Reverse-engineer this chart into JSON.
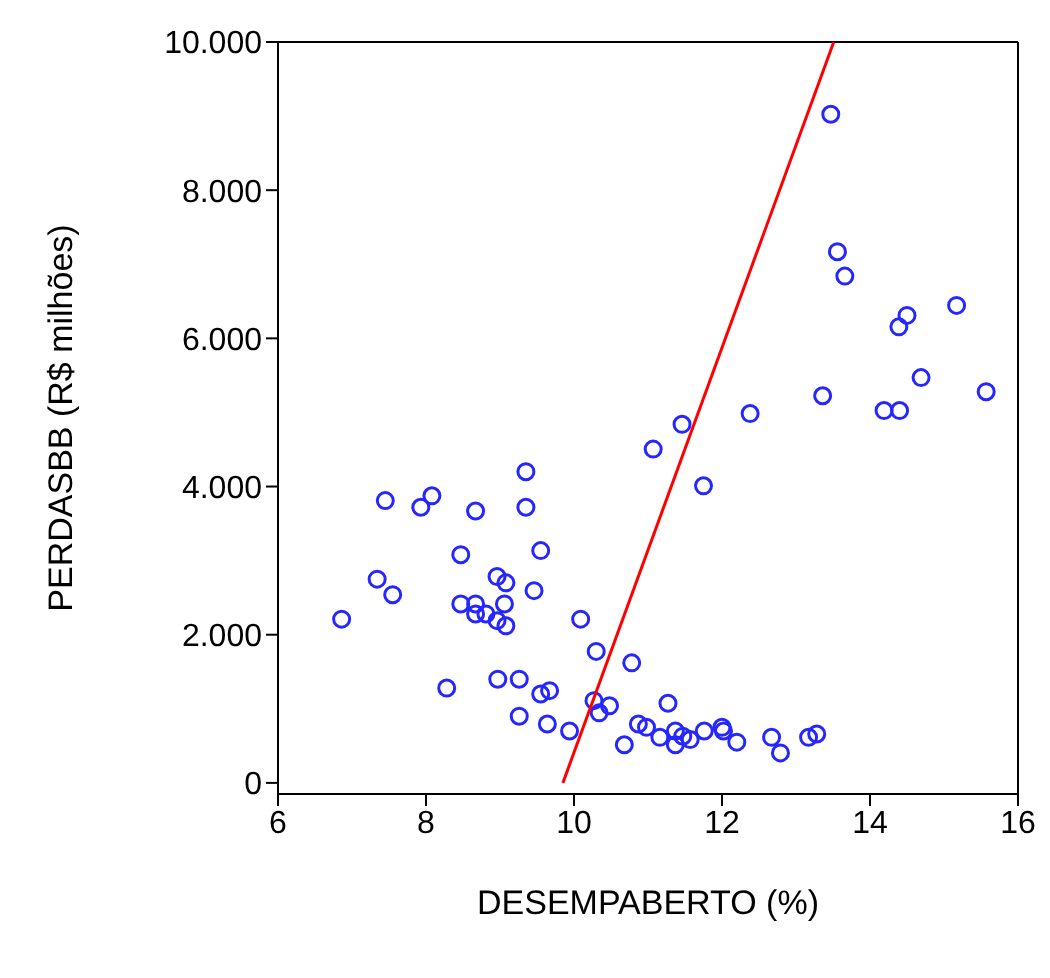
{
  "chart_data": {
    "type": "scatter",
    "xlabel": "DESEMPABERTO (%)",
    "ylabel": "PERDASBB (R$ milhões)",
    "xlim": [
      6,
      16
    ],
    "xticks": [
      6,
      8,
      10,
      12,
      14,
      16
    ],
    "ylim": [
      -150,
      10000
    ],
    "yticks": [
      {
        "value": 0,
        "label": "0"
      },
      {
        "value": 2000,
        "label": "2.000"
      },
      {
        "value": 4000,
        "label": "4.000"
      },
      {
        "value": 6000,
        "label": "6.000"
      },
      {
        "value": 8000,
        "label": "8.000"
      },
      {
        "value": 10000,
        "label": "10.000"
      }
    ],
    "series": [
      {
        "marker": "circle",
        "color": "#2626ff",
        "x": [
          9.35,
          7.45,
          8.08,
          7.93,
          8.67,
          9.35,
          9.55,
          8.47,
          7.34,
          7.55,
          8.96,
          9.08,
          9.46,
          8.47,
          8.67,
          9.06,
          8.67,
          8.81,
          8.96,
          9.08,
          6.86,
          10.09,
          10.3,
          10.78,
          8.28,
          8.97,
          9.26,
          9.55,
          9.67,
          9.26,
          9.64,
          9.94,
          10.27,
          10.48,
          10.34,
          11.27,
          10.87,
          10.98,
          10.68,
          11.16,
          11.37,
          11.37,
          11.47,
          11.57,
          11.76,
          12.0,
          12.02,
          12.2,
          12.67,
          12.79,
          13.17,
          13.28,
          11.07,
          11.46,
          12.38,
          11.75,
          13.47,
          13.56,
          13.66,
          14.5,
          14.39,
          15.17,
          14.69,
          15.57,
          13.36,
          14.19,
          14.4
        ],
        "values": [
          4200,
          3810,
          3875,
          3720,
          3670,
          3720,
          3135,
          3080,
          2750,
          2540,
          2785,
          2700,
          2595,
          2415,
          2415,
          2415,
          2280,
          2280,
          2190,
          2120,
          2210,
          2210,
          1775,
          1620,
          1280,
          1400,
          1400,
          1200,
          1245,
          900,
          795,
          700,
          1110,
          1040,
          945,
          1075,
          795,
          750,
          515,
          615,
          700,
          515,
          630,
          585,
          700,
          750,
          700,
          550,
          615,
          405,
          615,
          660,
          4505,
          4840,
          4985,
          4010,
          9025,
          7170,
          6840,
          6310,
          6155,
          6445,
          5470,
          5280,
          5225,
          5025,
          5025
        ]
      },
      {
        "type": "line",
        "marker": "none",
        "color": "#ff0000",
        "x": [
          9.85,
          13.51
        ],
        "values": [
          0,
          10000
        ]
      }
    ]
  }
}
